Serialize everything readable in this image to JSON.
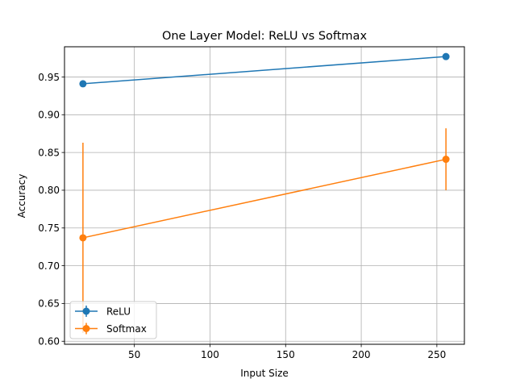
{
  "chart_data": {
    "type": "line",
    "title": "One Layer Model: ReLU vs Softmax",
    "xlabel": "Input Size",
    "ylabel": "Accuracy",
    "xlim": [
      3.8,
      268.2
    ],
    "ylim": [
      0.596,
      0.99
    ],
    "xticks": [
      50,
      100,
      150,
      200,
      250
    ],
    "yticks": [
      0.6,
      0.65,
      0.7,
      0.75,
      0.8,
      0.85,
      0.9,
      0.95
    ],
    "grid": true,
    "legend_position": "lower left",
    "series": [
      {
        "name": "ReLU",
        "color": "#1f77b4",
        "x": [
          16,
          256
        ],
        "y": [
          0.941,
          0.977
        ],
        "err": [
          0.0,
          0.0
        ]
      },
      {
        "name": "Softmax",
        "color": "#ff7f0e",
        "x": [
          16,
          256
        ],
        "y": [
          0.737,
          0.841
        ],
        "err": [
          0.126,
          0.041
        ]
      }
    ]
  }
}
